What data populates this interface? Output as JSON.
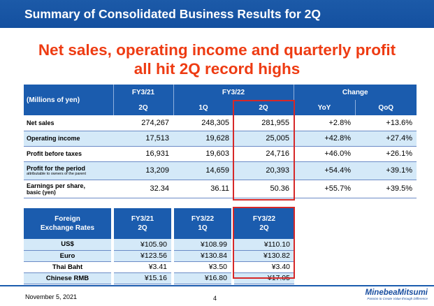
{
  "slide": {
    "title": "Summary of Consolidated Business Results for 2Q",
    "headline_line1": "Net sales, operating income and quarterly profit",
    "headline_line2": "all hit 2Q record highs"
  },
  "results_table": {
    "unit_label": "(Millions of yen)",
    "group_headers": [
      "FY3/21",
      "FY3/22",
      "Change"
    ],
    "sub_headers": [
      "2Q",
      "1Q",
      "2Q",
      "YoY",
      "QoQ"
    ],
    "rows": [
      {
        "label": "Net sales",
        "sublabel": "",
        "values": [
          "274,267",
          "248,305",
          "281,955",
          "+2.8%",
          "+13.6%"
        ]
      },
      {
        "label": "Operating income",
        "sublabel": "",
        "values": [
          "17,513",
          "19,628",
          "25,005",
          "+42.8%",
          "+27.4%"
        ]
      },
      {
        "label": "Profit before taxes",
        "sublabel": "",
        "values": [
          "16,931",
          "19,603",
          "24,716",
          "+46.0%",
          "+26.1%"
        ]
      },
      {
        "label": "Profit for the period",
        "sublabel": "attributable to owners of the parent",
        "values": [
          "13,209",
          "14,659",
          "20,393",
          "+54.4%",
          "+39.1%"
        ]
      },
      {
        "label": "Earnings per share,",
        "sublabel": "basic (yen)",
        "values": [
          "32.34",
          "36.11",
          "50.36",
          "+55.7%",
          "+39.5%"
        ]
      }
    ]
  },
  "fx_table": {
    "header_label_line1": "Foreign",
    "header_label_line2": "Exchange Rates",
    "columns": [
      {
        "line1": "FY3/21",
        "line2": "2Q"
      },
      {
        "line1": "FY3/22",
        "line2": "1Q"
      },
      {
        "line1": "FY3/22",
        "line2": "2Q"
      }
    ],
    "rows": [
      {
        "label": "US$",
        "values": [
          "¥105.90",
          "¥108.99",
          "¥110.10"
        ]
      },
      {
        "label": "Euro",
        "values": [
          "¥123.56",
          "¥130.84",
          "¥130.82"
        ]
      },
      {
        "label": "Thai Baht",
        "values": [
          "¥3.41",
          "¥3.50",
          "¥3.40"
        ]
      },
      {
        "label": "Chinese RMB",
        "values": [
          "¥15.16",
          "¥16.80",
          "¥17.05"
        ]
      }
    ]
  },
  "footer": {
    "date": "November 5, 2021",
    "page": "4",
    "logo": "MinebeaMitsumi",
    "tagline": "Passion to Create Value through Difference"
  },
  "colors": {
    "header_blue": "#1b5cae",
    "row_alt": "#d4e9f8",
    "highlight_red": "#d62828",
    "headline_orange": "#ee3b12"
  }
}
